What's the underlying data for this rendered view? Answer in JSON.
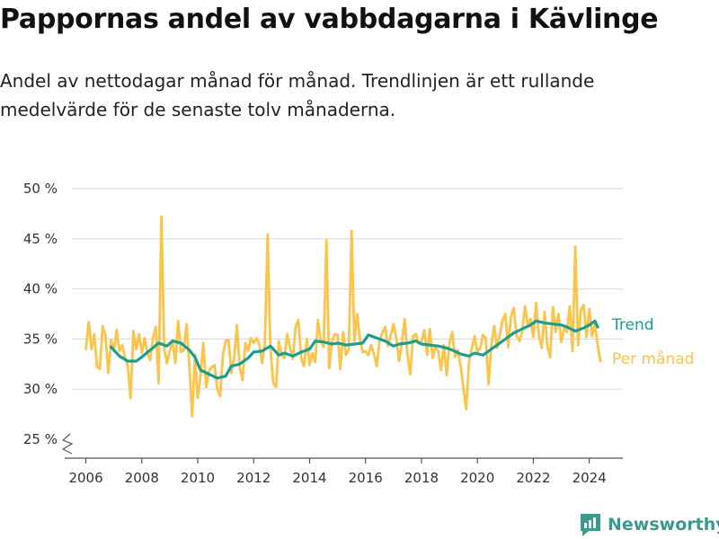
{
  "chart_data": {
    "type": "line",
    "title": "Pappornas andel av vabbdagarna i Kävlinge",
    "subtitle": "Andel av nettodagar månad för månad. Trendlinjen är ett rullande medelvärde för de senaste tolv månaderna.",
    "xlabel": "",
    "ylabel": "",
    "x_ticks": [
      "2006",
      "2008",
      "2010",
      "2012",
      "2014",
      "2016",
      "2018",
      "2020",
      "2022",
      "2024"
    ],
    "y_ticks": [
      "25 %",
      "30 %",
      "35 %",
      "40 %",
      "45 %",
      "50 %"
    ],
    "xlim": [
      2005.5,
      2025.2
    ],
    "ylim": [
      25,
      50
    ],
    "grid": true,
    "legend": "right, inline at line ends",
    "series": [
      {
        "name": "Trend",
        "color": "#1a9e8f",
        "x": [
          2006.9,
          2007.2,
          2007.5,
          2007.8,
          2008.0,
          2008.3,
          2008.6,
          2008.9,
          2009.1,
          2009.4,
          2009.7,
          2009.9,
          2010.1,
          2010.4,
          2010.7,
          2011.0,
          2011.2,
          2011.5,
          2011.8,
          2012.0,
          2012.3,
          2012.6,
          2012.9,
          2013.1,
          2013.4,
          2013.7,
          2014.0,
          2014.2,
          2014.5,
          2014.8,
          2015.0,
          2015.3,
          2015.6,
          2015.9,
          2016.1,
          2016.4,
          2016.7,
          2017.0,
          2017.2,
          2017.5,
          2017.8,
          2018.0,
          2018.3,
          2018.6,
          2018.9,
          2019.1,
          2019.4,
          2019.7,
          2019.9,
          2020.2,
          2020.5,
          2020.8,
          2021.0,
          2021.3,
          2021.6,
          2021.9,
          2022.1,
          2022.4,
          2022.7,
          2023.0,
          2023.2,
          2023.5,
          2023.8,
          2024.0,
          2024.2,
          2024.3
        ],
        "values": [
          34.2,
          33.3,
          32.8,
          32.8,
          33.2,
          33.9,
          34.6,
          34.3,
          34.8,
          34.6,
          33.9,
          33.2,
          31.9,
          31.5,
          31.1,
          31.3,
          32.3,
          32.5,
          33.1,
          33.7,
          33.8,
          34.3,
          33.4,
          33.6,
          33.3,
          33.7,
          34.0,
          34.8,
          34.7,
          34.5,
          34.6,
          34.4,
          34.5,
          34.6,
          35.4,
          35.1,
          34.8,
          34.3,
          34.5,
          34.6,
          34.8,
          34.5,
          34.4,
          34.3,
          34.1,
          33.9,
          33.5,
          33.3,
          33.6,
          33.4,
          34.0,
          34.6,
          35.0,
          35.6,
          36.0,
          36.4,
          36.8,
          36.6,
          36.5,
          36.4,
          36.2,
          35.8,
          36.1,
          36.4,
          36.8,
          36.2
        ]
      },
      {
        "name": "Per månad",
        "color": "#fcc44a",
        "x": [
          2006.0,
          2006.1,
          2006.2,
          2006.3,
          2006.4,
          2006.5,
          2006.6,
          2006.7,
          2006.8,
          2006.9,
          2007.0,
          2007.1,
          2007.2,
          2007.3,
          2007.4,
          2007.5,
          2007.6,
          2007.7,
          2007.8,
          2007.9,
          2008.0,
          2008.1,
          2008.2,
          2008.3,
          2008.4,
          2008.5,
          2008.6,
          2008.7,
          2008.8,
          2008.9,
          2009.0,
          2009.1,
          2009.2,
          2009.3,
          2009.4,
          2009.5,
          2009.6,
          2009.7,
          2009.8,
          2009.9,
          2010.0,
          2010.1,
          2010.2,
          2010.3,
          2010.4,
          2010.5,
          2010.6,
          2010.7,
          2010.8,
          2010.9,
          2011.0,
          2011.1,
          2011.2,
          2011.3,
          2011.4,
          2011.5,
          2011.6,
          2011.7,
          2011.8,
          2011.9,
          2012.0,
          2012.1,
          2012.2,
          2012.3,
          2012.4,
          2012.5,
          2012.6,
          2012.7,
          2012.8,
          2012.9,
          2013.0,
          2013.1,
          2013.2,
          2013.3,
          2013.4,
          2013.5,
          2013.6,
          2013.7,
          2013.8,
          2013.9,
          2014.0,
          2014.1,
          2014.2,
          2014.3,
          2014.4,
          2014.5,
          2014.6,
          2014.7,
          2014.8,
          2014.9,
          2015.0,
          2015.1,
          2015.2,
          2015.3,
          2015.4,
          2015.5,
          2015.6,
          2015.7,
          2015.8,
          2015.9,
          2016.0,
          2016.1,
          2016.2,
          2016.3,
          2016.4,
          2016.5,
          2016.6,
          2016.7,
          2016.8,
          2016.9,
          2017.0,
          2017.1,
          2017.2,
          2017.3,
          2017.4,
          2017.5,
          2017.6,
          2017.7,
          2017.8,
          2017.9,
          2018.0,
          2018.1,
          2018.2,
          2018.3,
          2018.4,
          2018.5,
          2018.6,
          2018.7,
          2018.8,
          2018.9,
          2019.0,
          2019.1,
          2019.2,
          2019.3,
          2019.4,
          2019.5,
          2019.6,
          2019.7,
          2019.8,
          2019.9,
          2020.0,
          2020.1,
          2020.2,
          2020.3,
          2020.4,
          2020.5,
          2020.6,
          2020.7,
          2020.8,
          2020.9,
          2021.0,
          2021.1,
          2021.2,
          2021.3,
          2021.4,
          2021.5,
          2021.6,
          2021.7,
          2021.8,
          2021.9,
          2022.0,
          2022.1,
          2022.2,
          2022.3,
          2022.4,
          2022.5,
          2022.6,
          2022.7,
          2022.8,
          2022.9,
          2023.0,
          2023.1,
          2023.2,
          2023.3,
          2023.4,
          2023.5,
          2023.6,
          2023.7,
          2023.8,
          2023.9,
          2024.0,
          2024.1,
          2024.2,
          2024.3,
          2024.4
        ],
        "values": [
          34.0,
          36.7,
          34.0,
          35.5,
          32.2,
          32.0,
          36.3,
          35.4,
          31.6,
          34.9,
          33.8,
          35.9,
          33.8,
          34.4,
          33.1,
          32.3,
          29.1,
          35.8,
          34.0,
          35.5,
          33.6,
          35.1,
          33.6,
          32.9,
          35.1,
          36.2,
          30.6,
          47.2,
          34.0,
          32.6,
          33.8,
          34.8,
          32.6,
          36.8,
          33.7,
          33.9,
          36.5,
          32.3,
          27.3,
          33.4,
          29.1,
          31.3,
          34.6,
          30.2,
          31.8,
          32.2,
          32.4,
          30.0,
          29.3,
          33.4,
          34.8,
          34.9,
          31.6,
          33.1,
          36.4,
          32.2,
          30.9,
          34.6,
          33.8,
          35.1,
          34.6,
          35.1,
          34.5,
          32.6,
          34.5,
          45.4,
          34.1,
          30.6,
          30.2,
          34.8,
          33.4,
          33.1,
          35.5,
          34.1,
          33.0,
          36.2,
          36.9,
          33.0,
          32.3,
          35.0,
          32.4,
          33.6,
          32.7,
          36.9,
          34.8,
          34.2,
          44.9,
          32.1,
          34.8,
          35.5,
          35.4,
          32.0,
          35.7,
          33.4,
          34.0,
          45.8,
          34.8,
          37.5,
          35.0,
          33.7,
          33.8,
          33.4,
          34.4,
          33.5,
          32.3,
          34.8,
          35.6,
          36.2,
          34.3,
          35.3,
          36.5,
          35.1,
          32.8,
          34.7,
          37.0,
          33.4,
          31.5,
          35.3,
          35.5,
          34.6,
          34.7,
          35.9,
          33.4,
          36.0,
          33.1,
          34.2,
          33.8,
          31.9,
          34.4,
          31.4,
          34.6,
          35.7,
          33.2,
          33.9,
          32.3,
          30.1,
          28.0,
          32.8,
          34.1,
          35.3,
          33.7,
          34.1,
          35.4,
          35.1,
          30.5,
          34.5,
          36.3,
          34.1,
          35.4,
          36.9,
          37.5,
          34.2,
          37.2,
          38.1,
          35.3,
          34.8,
          35.7,
          38.3,
          36.4,
          37.0,
          35.2,
          38.6,
          35.3,
          34.1,
          37.7,
          34.3,
          33.2,
          38.2,
          35.7,
          37.5,
          34.7,
          36.1,
          35.7,
          38.3,
          33.8,
          44.2,
          34.4,
          37.9,
          38.4,
          35.2,
          38.0,
          35.3,
          36.5,
          34.4,
          32.8
        ]
      }
    ]
  },
  "branding": {
    "name": "Newsworthy"
  }
}
